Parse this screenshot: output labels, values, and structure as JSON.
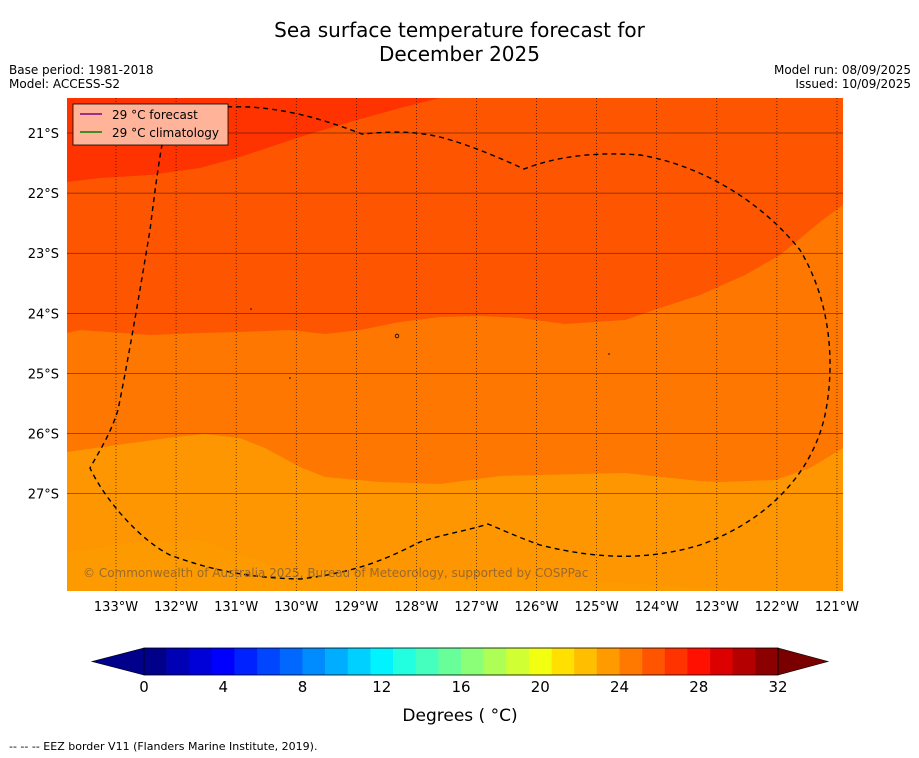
{
  "title_line1": "Sea surface temperature forecast for",
  "title_line2": "December 2025",
  "meta": {
    "base_period": "Base period: 1981-2018",
    "model": "Model: ACCESS-S2",
    "model_run": "Model run: 08/09/2025",
    "issued": "Issued: 10/09/2025"
  },
  "legend": {
    "forecast": "29 °C  forecast",
    "climatology": "29 °C  climatology",
    "forecast_color": "#800080",
    "climatology_color": "#008000"
  },
  "copyright": "© Commonwealth of Australia 2025, Bureau of Meteorology, supported by COSPPac",
  "footer": "--  --  -- EEZ border V11 (Flanders Marine Institute, 2019).",
  "map": {
    "lon_labels": [
      "133°W",
      "132°W",
      "131°W",
      "130°W",
      "129°W",
      "128°W",
      "127°W",
      "126°W",
      "125°W",
      "124°W",
      "123°W",
      "122°W",
      "121°W"
    ],
    "lat_labels": [
      "21°S",
      "22°S",
      "23°S",
      "24°S",
      "25°S",
      "26°S",
      "27°S"
    ],
    "temperature_bands_c": [
      {
        "range": "27-28",
        "color": "#fd9600"
      },
      {
        "range": "28-29",
        "color": "#fe7700"
      },
      {
        "range": "29-30",
        "color": "#fe5500"
      },
      {
        "range": "30-31",
        "color": "#ff3300"
      }
    ]
  },
  "colorbar": {
    "title": "Degrees ( °C)",
    "ticks": [
      "0",
      "4",
      "8",
      "12",
      "16",
      "20",
      "24",
      "28",
      "32"
    ],
    "min": 0,
    "max": 32,
    "colors": [
      "#00008b",
      "#0000b4",
      "#0000d8",
      "#0000ff",
      "#0022ff",
      "#0045ff",
      "#0068ff",
      "#008bff",
      "#00adff",
      "#00d0ff",
      "#00f3ff",
      "#22ffe0",
      "#45ffbe",
      "#68ff9b",
      "#8bff78",
      "#adff55",
      "#d0ff33",
      "#f3ff10",
      "#ffe000",
      "#ffbe00",
      "#ff9b00",
      "#ff7800",
      "#ff5500",
      "#ff3300",
      "#ff1000",
      "#dd0000",
      "#b40000",
      "#8b0000"
    ],
    "extend_low_color": "#00008b",
    "extend_high_color": "#7a0000"
  }
}
